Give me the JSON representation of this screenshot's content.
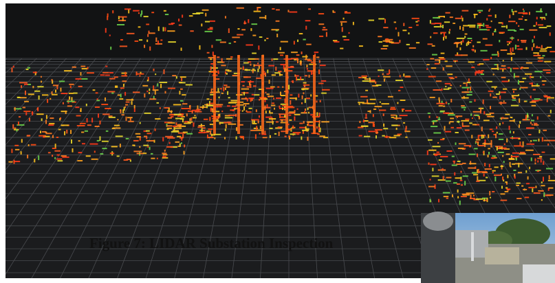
{
  "caption": "Figure 7: LIDAR Substation Inspection"
}
